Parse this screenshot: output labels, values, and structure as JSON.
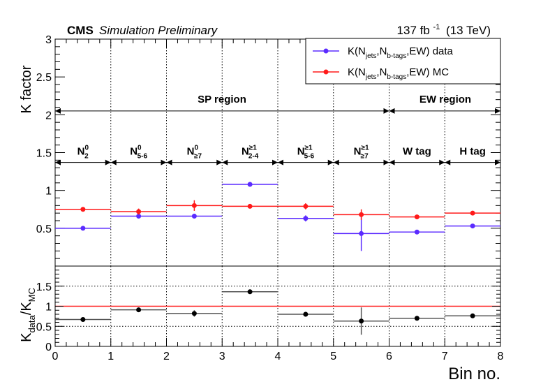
{
  "header": {
    "cms": "CMS",
    "sim": "Simulation Preliminary",
    "lumi_value": "137 fb",
    "lumi_exp": "-1",
    "lumi_energy": "(13 TeV)"
  },
  "legend": {
    "data": {
      "pre": "K(N",
      "s1": "jets",
      "mid": ",N",
      "s2": "b-tags",
      "post": ",EW) data",
      "color": "#5b2bff"
    },
    "mc": {
      "pre": "K(N",
      "s1": "jets",
      "mid": ",N",
      "s2": "b-tags",
      "post": ",EW) MC",
      "color": "#ff1a1a"
    }
  },
  "regions": {
    "sp": "SP region",
    "ew": "EW region"
  },
  "bin_labels": [
    {
      "main": "N",
      "sup": "0",
      "sub": "2"
    },
    {
      "main": "N",
      "sup": "0",
      "sub": "5-6"
    },
    {
      "main": "N",
      "sup": "0",
      "sub": "≥7"
    },
    {
      "main": "N",
      "sup": "≥1",
      "sub": "2-4"
    },
    {
      "main": "N",
      "sup": "≥1",
      "sub": "5-6"
    },
    {
      "main": "N",
      "sup": "≥1",
      "sub": "≥7"
    },
    {
      "main": "W tag",
      "sup": "",
      "sub": ""
    },
    {
      "main": "H tag",
      "sup": "",
      "sub": ""
    }
  ],
  "chart_data": [
    {
      "type": "scatter",
      "ylabel": "K factor",
      "xlim": [
        0,
        8
      ],
      "ylim": [
        0,
        3
      ],
      "yticks": [
        "0.5",
        "1",
        "1.5",
        "2",
        "2.5",
        "3"
      ],
      "series": [
        {
          "name": "K(Njets,Nb-tags,EW) data",
          "color": "#5b2bff",
          "x": [
            0.5,
            1.5,
            2.5,
            3.5,
            4.5,
            5.5,
            6.5,
            7.5
          ],
          "y": [
            0.5,
            0.66,
            0.66,
            1.08,
            0.63,
            0.43,
            0.45,
            0.53
          ],
          "err": [
            0.01,
            0.03,
            0.03,
            0.01,
            0.04,
            0.23,
            0.01,
            0.01
          ]
        },
        {
          "name": "K(Njets,Nb-tags,EW) MC",
          "color": "#ff1a1a",
          "x": [
            0.5,
            1.5,
            2.5,
            3.5,
            4.5,
            5.5,
            6.5,
            7.5
          ],
          "y": [
            0.75,
            0.72,
            0.8,
            0.79,
            0.79,
            0.68,
            0.65,
            0.7
          ],
          "err": [
            0.01,
            0.04,
            0.07,
            0.01,
            0.04,
            0.07,
            0.01,
            0.01
          ]
        }
      ]
    },
    {
      "type": "scatter",
      "xlabel": "Bin no.",
      "ylabel_pre": "K",
      "ylabel_s1": "data",
      "ylabel_mid": "/K",
      "ylabel_s2": "MC",
      "xlim": [
        0,
        8
      ],
      "ylim": [
        0,
        2
      ],
      "xticks": [
        "0",
        "1",
        "2",
        "3",
        "4",
        "5",
        "6",
        "7",
        "8"
      ],
      "yticks": [
        "0",
        "0.5",
        "1",
        "1.5"
      ],
      "reference_line": 1,
      "series": [
        {
          "name": "ratio",
          "color": "#000000",
          "x": [
            0.5,
            1.5,
            2.5,
            3.5,
            4.5,
            5.5,
            6.5,
            7.5
          ],
          "y": [
            0.67,
            0.91,
            0.82,
            1.36,
            0.8,
            0.63,
            0.7,
            0.76
          ],
          "err": [
            0.02,
            0.03,
            0.08,
            0.02,
            0.06,
            0.34,
            0.02,
            0.02
          ]
        }
      ]
    }
  ]
}
